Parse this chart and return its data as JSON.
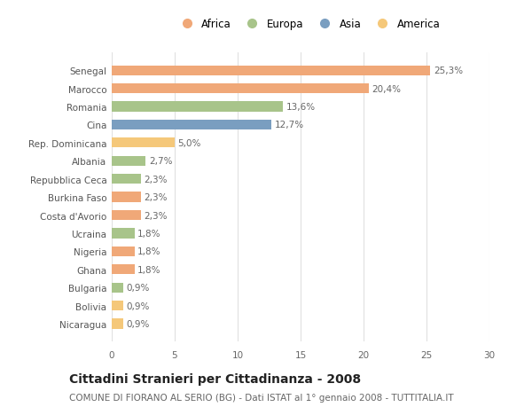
{
  "categories": [
    "Nicaragua",
    "Bolivia",
    "Bulgaria",
    "Ghana",
    "Nigeria",
    "Ucraina",
    "Costa d'Avorio",
    "Burkina Faso",
    "Repubblica Ceca",
    "Albania",
    "Rep. Dominicana",
    "Cina",
    "Romania",
    "Marocco",
    "Senegal"
  ],
  "values": [
    0.9,
    0.9,
    0.9,
    1.8,
    1.8,
    1.8,
    2.3,
    2.3,
    2.3,
    2.7,
    5.0,
    12.7,
    13.6,
    20.4,
    25.3
  ],
  "labels": [
    "0,9%",
    "0,9%",
    "0,9%",
    "1,8%",
    "1,8%",
    "1,8%",
    "2,3%",
    "2,3%",
    "2,3%",
    "2,7%",
    "5,0%",
    "12,7%",
    "13,6%",
    "20,4%",
    "25,3%"
  ],
  "colors": [
    "#F5C87A",
    "#F5C87A",
    "#A8C48A",
    "#F0A878",
    "#F0A878",
    "#A8C48A",
    "#F0A878",
    "#F0A878",
    "#A8C48A",
    "#A8C48A",
    "#F5C87A",
    "#7A9EC0",
    "#A8C48A",
    "#F0A878",
    "#F0A878"
  ],
  "legend_labels": [
    "Africa",
    "Europa",
    "Asia",
    "America"
  ],
  "legend_colors": [
    "#F0A878",
    "#A8C48A",
    "#7A9EC0",
    "#F5C87A"
  ],
  "title": "Cittadini Stranieri per Cittadinanza - 2008",
  "subtitle": "COMUNE DI FIORANO AL SERIO (BG) - Dati ISTAT al 1° gennaio 2008 - TUTTITALIA.IT",
  "xlim": [
    0,
    30
  ],
  "xticks": [
    0,
    5,
    10,
    15,
    20,
    25,
    30
  ],
  "background_color": "#ffffff",
  "bar_height": 0.55,
  "grid_color": "#e0e0e0",
  "title_fontsize": 10,
  "subtitle_fontsize": 7.5,
  "label_fontsize": 7.5,
  "tick_fontsize": 7.5,
  "legend_fontsize": 8.5
}
